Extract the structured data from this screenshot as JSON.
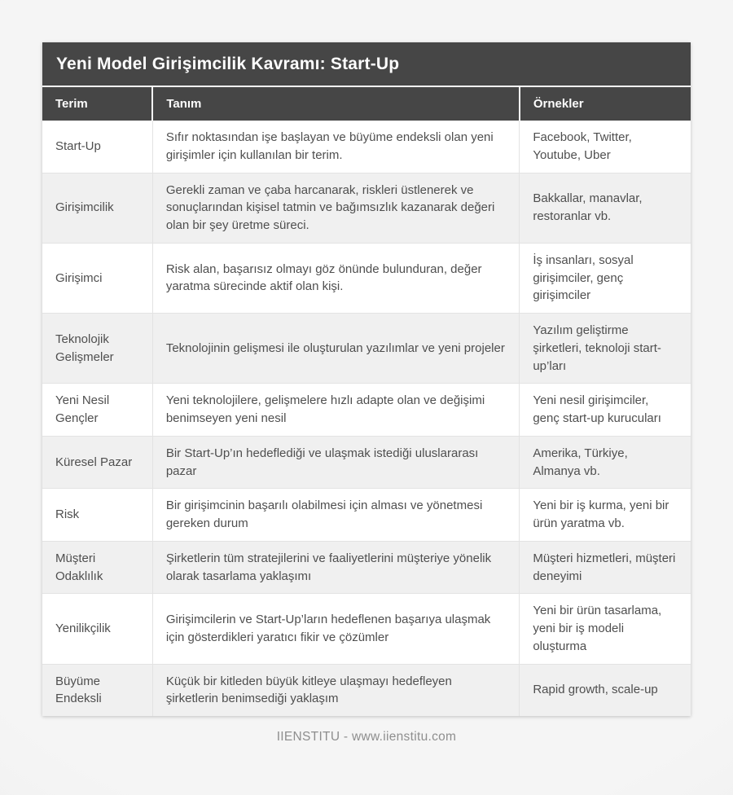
{
  "page": {
    "title": "Yeni Model Girişimcilik Kavramı: Start-Up",
    "footer": "IIENSTITU - www.iienstitu.com"
  },
  "colors": {
    "header_bg": "#464646",
    "header_text": "#fdfdfd",
    "row_alt_bg": "#f0f0f0",
    "row_bg": "#ffffff",
    "cell_border": "#e3e3e3",
    "body_text": "#4f4f4f",
    "footer_text": "#8e8e8e",
    "page_bg": "#f4f4f4"
  },
  "table": {
    "headers": [
      "Terim",
      "Tanım",
      "Örnekler"
    ],
    "rows": [
      {
        "term": "Start-Up",
        "definition": "Sıfır noktasından işe başlayan ve büyüme endeksli olan yeni girişimler için kullanılan bir terim.",
        "examples": "Facebook, Twitter, Youtube, Uber"
      },
      {
        "term": "Girişimcilik",
        "definition": "Gerekli zaman ve çaba harcanarak, riskleri üstlenerek ve sonuçlarından kişisel tatmin ve bağımsızlık kazanarak değeri olan bir şey üretme süreci.",
        "examples": "Bakkallar, manavlar, restoranlar vb."
      },
      {
        "term": "Girişimci",
        "definition": "Risk alan, başarısız olmayı göz önünde bulunduran, değer yaratma sürecinde aktif olan kişi.",
        "examples": "İş insanları, sosyal girişimciler, genç girişimciler"
      },
      {
        "term": "Teknolojik Gelişmeler",
        "definition": "Teknolojinin gelişmesi ile oluşturulan yazılımlar ve yeni projeler",
        "examples": "Yazılım geliştirme şirketleri, teknoloji start-up’ları"
      },
      {
        "term": "Yeni Nesil Gençler",
        "definition": "Yeni teknolojilere, gelişmelere hızlı adapte olan ve değişimi benimseyen yeni nesil",
        "examples": "Yeni nesil girişimciler, genç start-up kurucuları"
      },
      {
        "term": "Küresel Pazar",
        "definition": "Bir Start-Up’ın hedeflediği ve ulaşmak istediği uluslararası pazar",
        "examples": "Amerika, Türkiye, Almanya vb."
      },
      {
        "term": "Risk",
        "definition": "Bir girişimcinin başarılı olabilmesi için alması ve yönetmesi gereken durum",
        "examples": "Yeni bir iş kurma, yeni bir ürün yaratma vb."
      },
      {
        "term": "Müşteri Odaklılık",
        "definition": "Şirketlerin tüm stratejilerini ve faaliyetlerini müşteriye yönelik olarak tasarlama yaklaşımı",
        "examples": "Müşteri hizmetleri, müşteri deneyimi"
      },
      {
        "term": "Yenilikçilik",
        "definition": "Girişimcilerin ve Start-Up’ların hedeflenen başarıya ulaşmak için gösterdikleri yaratıcı fikir ve çözümler",
        "examples": "Yeni bir ürün tasarlama, yeni bir iş modeli oluşturma"
      },
      {
        "term": "Büyüme Endeksli",
        "definition": "Küçük bir kitleden büyük kitleye ulaşmayı hedefleyen şirketlerin benimsediği yaklaşım",
        "examples": "Rapid growth, scale-up"
      }
    ]
  }
}
